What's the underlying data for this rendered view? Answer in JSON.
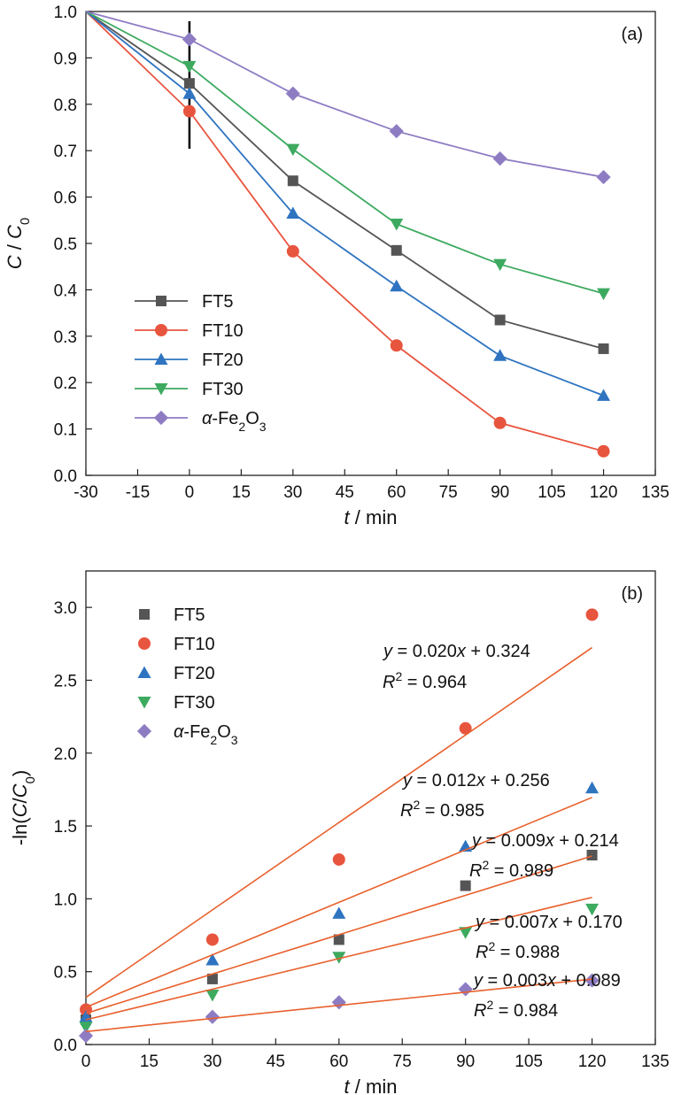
{
  "chart_data": [
    {
      "panel_label": "(a)",
      "type": "line",
      "xlabel_italic": "t",
      "xlabel_rest": " / min",
      "ylabel": "C / C0",
      "xlim": [
        -30,
        135
      ],
      "ylim": [
        0,
        1.0
      ],
      "xticks": [
        "-30",
        "-15",
        "0",
        "15",
        "30",
        "45",
        "60",
        "75",
        "90",
        "105",
        "120",
        "135"
      ],
      "yticks": [
        "0.0",
        "0.1",
        "0.2",
        "0.3",
        "0.4",
        "0.5",
        "0.6",
        "0.7",
        "0.8",
        "0.9",
        "1.0"
      ],
      "x": [
        -30,
        0,
        30,
        60,
        90,
        120
      ],
      "vertical_marker_x": 0,
      "legend_position": "lower-left",
      "series": [
        {
          "name": "FT5",
          "color": "#555555",
          "marker": "square",
          "values": [
            1.0,
            0.845,
            0.635,
            0.485,
            0.335,
            0.273
          ]
        },
        {
          "name": "FT10",
          "color": "#e8553f",
          "marker": "circle",
          "values": [
            1.0,
            0.785,
            0.483,
            0.28,
            0.113,
            0.052
          ]
        },
        {
          "name": "FT20",
          "color": "#2f74c0",
          "marker": "triangle-up",
          "values": [
            1.0,
            0.823,
            0.565,
            0.408,
            0.258,
            0.172
          ]
        },
        {
          "name": "FT30",
          "color": "#3daa60",
          "marker": "triangle-down",
          "values": [
            1.0,
            0.882,
            0.703,
            0.542,
            0.455,
            0.392
          ]
        },
        {
          "name": "α-Fe2O3",
          "color": "#8e7cc3",
          "marker": "diamond",
          "values": [
            1.0,
            0.94,
            0.823,
            0.742,
            0.683,
            0.643
          ]
        }
      ]
    },
    {
      "panel_label": "(b)",
      "type": "scatter",
      "xlabel_italic": "t",
      "xlabel_rest": " / min",
      "ylabel": "-ln(C/C0)",
      "xlim": [
        0,
        135
      ],
      "ylim": [
        0,
        3.25
      ],
      "xticks": [
        "0",
        "15",
        "30",
        "45",
        "60",
        "75",
        "90",
        "105",
        "120",
        "135"
      ],
      "yticks": [
        "0.0",
        "0.5",
        "1.0",
        "1.5",
        "2.0",
        "2.5",
        "3.0"
      ],
      "x": [
        0,
        30,
        60,
        90,
        120
      ],
      "fit_color": "#e8602c",
      "legend_position": "upper-left",
      "series": [
        {
          "name": "FT5",
          "color": "#555555",
          "marker": "square",
          "values": [
            0.17,
            0.45,
            0.72,
            1.09,
            1.3
          ],
          "fit": {
            "slope": 0.009,
            "intercept": 0.214,
            "equation": "y = 0.009x + 0.214",
            "r2": "R2 = 0.989"
          }
        },
        {
          "name": "FT10",
          "color": "#e8553f",
          "marker": "circle",
          "values": [
            0.24,
            0.72,
            1.27,
            2.17,
            2.95
          ],
          "fit": {
            "slope": 0.02,
            "intercept": 0.324,
            "equation": "y = 0.020x + 0.324",
            "r2": "R2 = 0.964"
          }
        },
        {
          "name": "FT20",
          "color": "#2f74c0",
          "marker": "triangle-up",
          "values": [
            0.19,
            0.58,
            0.9,
            1.36,
            1.76
          ],
          "fit": {
            "slope": 0.012,
            "intercept": 0.256,
            "equation": "y = 0.012x + 0.256",
            "r2": "R2 = 0.985"
          }
        },
        {
          "name": "FT30",
          "color": "#3daa60",
          "marker": "triangle-down",
          "values": [
            0.12,
            0.34,
            0.6,
            0.77,
            0.93
          ],
          "fit": {
            "slope": 0.007,
            "intercept": 0.17,
            "equation": "y = 0.007x + 0.170",
            "r2": "R2 = 0.988"
          }
        },
        {
          "name": "α-Fe2O3",
          "color": "#8e7cc3",
          "marker": "diamond",
          "values": [
            0.06,
            0.19,
            0.29,
            0.38,
            0.44
          ],
          "fit": {
            "slope": 0.003,
            "intercept": 0.089,
            "equation": "y = 0.003x + 0.089",
            "r2": "R2 = 0.984"
          }
        }
      ]
    }
  ]
}
